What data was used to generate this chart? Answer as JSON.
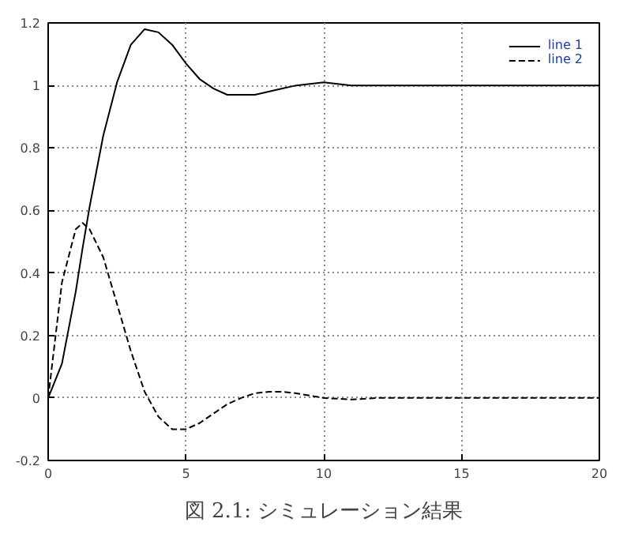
{
  "chart_data": {
    "type": "line",
    "x": [
      0,
      0.5,
      1,
      1.25,
      1.5,
      2,
      2.5,
      3,
      3.5,
      4,
      4.5,
      5,
      5.5,
      6,
      6.5,
      7,
      7.5,
      8,
      8.5,
      9,
      10,
      11,
      12,
      14,
      16,
      18,
      20
    ],
    "series": [
      {
        "name": "line 1",
        "color": "#000000",
        "line_style": "solid",
        "values": [
          0,
          0.11,
          0.34,
          0.48,
          0.61,
          0.84,
          1.01,
          1.13,
          1.18,
          1.17,
          1.13,
          1.07,
          1.02,
          0.99,
          0.97,
          0.97,
          0.97,
          0.98,
          0.99,
          1.0,
          1.01,
          1.0,
          1.0,
          1.0,
          1.0,
          1.0,
          1.0
        ]
      },
      {
        "name": "line 2",
        "color": "#000000",
        "line_style": "dashed",
        "values": [
          0,
          0.37,
          0.54,
          0.56,
          0.54,
          0.45,
          0.3,
          0.15,
          0.02,
          -0.06,
          -0.1,
          -0.1,
          -0.08,
          -0.05,
          -0.02,
          0.0,
          0.015,
          0.02,
          0.02,
          0.015,
          0.0,
          -0.005,
          0,
          0,
          0,
          0,
          0
        ]
      }
    ],
    "xlim": [
      0,
      20
    ],
    "xticks": [
      0,
      5,
      10,
      15,
      20
    ],
    "ylim": [
      -0.2,
      1.2
    ],
    "yticks": [
      -0.2,
      0,
      0.2,
      0.4,
      0.6,
      0.8,
      1,
      1.2
    ],
    "grid": true,
    "legend": "top right",
    "annotations": [
      "図 2.1: シミュレーション結果"
    ]
  }
}
